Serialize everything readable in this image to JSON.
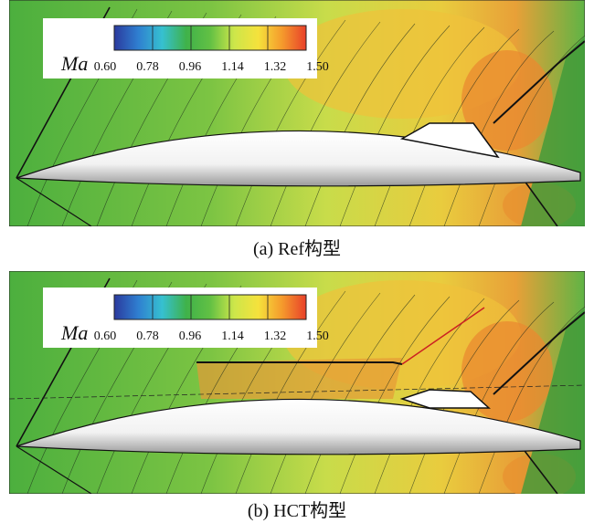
{
  "panels": [
    {
      "caption": "(a) Ref构型",
      "colorbar": {
        "label": "Ma",
        "ticks": [
          "0.60",
          "0.78",
          "0.96",
          "1.14",
          "1.32",
          "1.50"
        ]
      }
    },
    {
      "caption": "(b) HCT构型",
      "colorbar": {
        "label": "Ma",
        "ticks": [
          "0.60",
          "0.78",
          "0.96",
          "1.14",
          "1.32",
          "1.50"
        ]
      }
    }
  ]
}
